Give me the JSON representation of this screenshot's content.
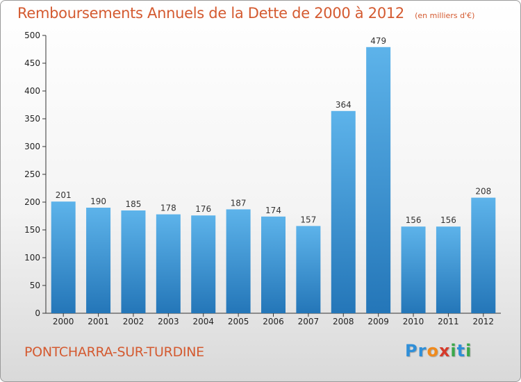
{
  "title": "Remboursements Annuels de la Dette de 2000 à 2012",
  "subtitle": "(en milliers d'€)",
  "commune": "PONTCHARRA-SUR-TURDINE",
  "logo": {
    "letters": [
      "P",
      "r",
      "o",
      "x",
      "i",
      "t",
      "i"
    ],
    "colors": [
      "#2f8fd8",
      "#2f8fd8",
      "#f08a1c",
      "#d63a2a",
      "#3aa84a",
      "#2f8fd8",
      "#3aa84a"
    ]
  },
  "colors": {
    "bar_top": "#5db3ea",
    "bar_bottom": "#2476b8",
    "title": "#d45a30"
  },
  "chart_data": {
    "type": "bar",
    "categories": [
      "2000",
      "2001",
      "2002",
      "2003",
      "2004",
      "2005",
      "2006",
      "2007",
      "2008",
      "2009",
      "2010",
      "2011",
      "2012"
    ],
    "values": [
      201,
      190,
      185,
      178,
      176,
      187,
      174,
      157,
      364,
      479,
      156,
      156,
      208
    ],
    "title": "Remboursements Annuels de la Dette de 2000 à 2012",
    "subtitle": "(en milliers d'€)",
    "xlabel": "",
    "ylabel": "",
    "ylim": [
      0,
      500
    ],
    "yticks": [
      0,
      50,
      100,
      150,
      200,
      250,
      300,
      350,
      400,
      450,
      500
    ],
    "grid": false,
    "legend": "none"
  }
}
